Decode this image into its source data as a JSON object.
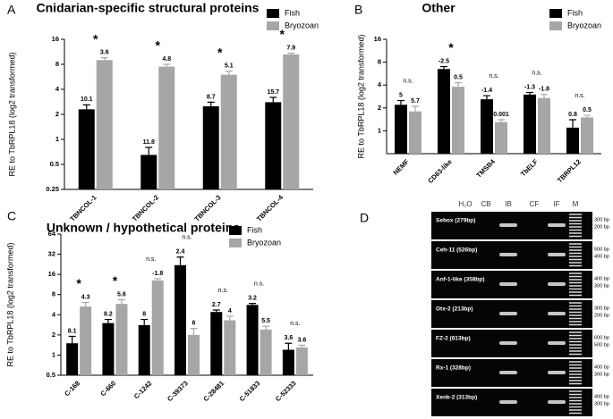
{
  "chart_data": [
    {
      "type": "bar",
      "panel": "A",
      "title": "Cnidarian-specific structural proteins",
      "y_label": "RE to TbRPL18 (log2 transformed)",
      "log_scale": true,
      "legend": "top-right",
      "categories": [
        "TBNCOL-1",
        "TBNCOL-2",
        "TBNCOL-3",
        "TBNCOL-4"
      ],
      "series": [
        {
          "name": "Fish",
          "color": "#000000",
          "values": [
            2.3,
            0.65,
            2.5,
            2.8
          ],
          "errors": [
            0.3,
            0.15,
            0.3,
            0.4
          ],
          "annotations": [
            "10.1",
            "11.8",
            "8.7",
            "15.7"
          ]
        },
        {
          "name": "Bryozoan",
          "color": "#a6a6a6",
          "values": [
            9,
            7.5,
            6,
            10.5
          ],
          "errors": [
            0.6,
            0.5,
            0.6,
            0.4
          ],
          "annotations": [
            "3.6",
            "4.8",
            "5.1",
            "7.9"
          ]
        }
      ],
      "significance": [
        "*",
        "*",
        "*",
        "*"
      ],
      "ylim": [
        0.25,
        16
      ],
      "yticks": [
        0.25,
        0.5,
        1,
        2,
        4,
        8,
        16
      ]
    },
    {
      "type": "bar",
      "panel": "B",
      "title": "Other",
      "y_label": "RE to TbRPL18 (log2 transformed)",
      "log_scale": true,
      "legend": "top-right",
      "categories": [
        "NEMF",
        "CD63-like",
        "TMSB4",
        "TbELF",
        "TBRPL12"
      ],
      "series": [
        {
          "name": "Fish",
          "color": "#000000",
          "values": [
            2.2,
            6.5,
            2.6,
            3.0,
            1.1
          ],
          "errors": [
            0.3,
            0.5,
            0.3,
            0.2,
            0.3
          ],
          "annotations": [
            "5",
            "-2.5",
            "-1.4",
            "-1.3",
            "0.8"
          ]
        },
        {
          "name": "Bryozoan",
          "color": "#a6a6a6",
          "values": [
            1.8,
            3.8,
            1.3,
            2.7,
            1.5
          ],
          "errors": [
            0.3,
            0.5,
            0.1,
            0.3,
            0.1
          ],
          "annotations": [
            "5.7",
            "0.5",
            "0.001",
            "-1.8",
            "0.5"
          ]
        }
      ],
      "significance": [
        "n.s.",
        "*",
        "n.s.",
        "n.s.",
        "n.s."
      ],
      "ylim": [
        0.5,
        16
      ],
      "yticks": [
        1,
        2,
        4,
        8,
        16
      ]
    },
    {
      "type": "bar",
      "panel": "C",
      "title": "Unknown / hypothetical proteins",
      "y_label": "RE to TbRPL18 (log2 transformed)",
      "log_scale": true,
      "legend": "top-right",
      "categories": [
        "C-168",
        "C-660",
        "C-1242",
        "C-39373",
        "C-28481",
        "C-51833",
        "C-52333"
      ],
      "series": [
        {
          "name": "Fish",
          "color": "#000000",
          "values": [
            1.5,
            3.0,
            2.8,
            22,
            4.4,
            5.6,
            1.2
          ],
          "errors": [
            0.4,
            0.4,
            0.6,
            7,
            0.3,
            0.3,
            0.3
          ],
          "annotations": [
            "8.1",
            "8.2",
            "8",
            "2.4",
            "2.7",
            "3.2",
            "3.6"
          ]
        },
        {
          "name": "Bryozoan",
          "color": "#a6a6a6",
          "values": [
            5.3,
            5.8,
            13,
            2.0,
            3.3,
            2.4,
            1.3
          ],
          "errors": [
            0.8,
            0.9,
            0.8,
            0.5,
            0.5,
            0.3,
            0.1
          ],
          "annotations": [
            "4.3",
            "5.6",
            "-1.8",
            "6",
            "4",
            "5.5",
            "3.6"
          ]
        }
      ],
      "significance": [
        "*",
        "*",
        "n.s.",
        "n.s.",
        "n.s.",
        "n.s.",
        "n.s."
      ],
      "ylim": [
        0.5,
        64
      ],
      "yticks": [
        0.5,
        1,
        2,
        4,
        8,
        16,
        32,
        64
      ]
    }
  ],
  "gel": {
    "panel": "D",
    "lanes": [
      "H₂O",
      "CB",
      "IB",
      "CF",
      "IF",
      "M"
    ],
    "rows": [
      {
        "label": "Sebox (279bp)",
        "markers": [
          "300 bp",
          "200 bp"
        ]
      },
      {
        "label": "Ceh-11 (526bp)",
        "markers": [
          "500 bp",
          "400 bp"
        ]
      },
      {
        "label": "Anf-1-like (358bp)",
        "markers": [
          "400 bp",
          "300 bp"
        ]
      },
      {
        "label": "Otx-2 (213bp)",
        "markers": [
          "300 bp",
          "200 bp"
        ]
      },
      {
        "label": "FZ-2 (613bp)",
        "markers": [
          "600 bp",
          "500 bp"
        ]
      },
      {
        "label": "Rx-1 (328bp)",
        "markers": [
          "400 bp",
          "300 bp"
        ]
      },
      {
        "label": "Xenk-2 (313bp)",
        "markers": [
          "400 bp",
          "300 bp"
        ]
      }
    ]
  }
}
